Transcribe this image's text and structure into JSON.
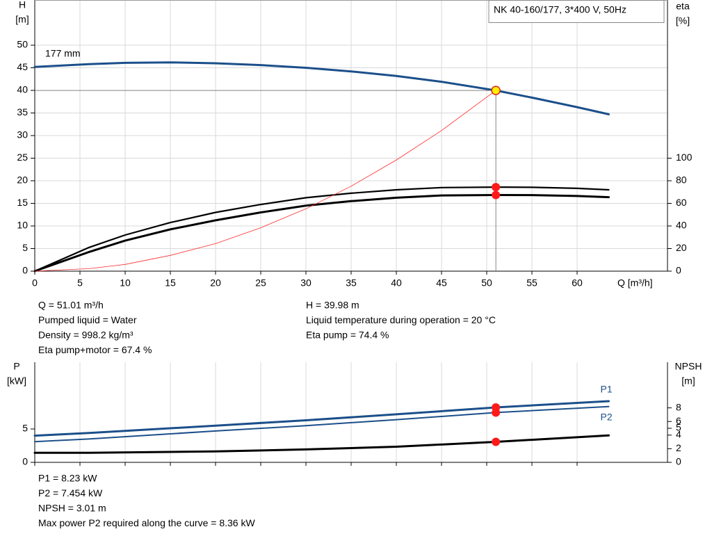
{
  "chart_data": [
    {
      "type": "line",
      "title": "NK 40-160/177, 3*400 V, 50Hz",
      "ylabel": "H",
      "yunit": "[m]",
      "y2label": "eta",
      "y2unit": "[%]",
      "xlabel": "Q [m³/h]",
      "annotation": "177 mm",
      "grid": true,
      "xlim": [
        0,
        70
      ],
      "xticks": [
        0,
        5,
        10,
        15,
        20,
        25,
        30,
        35,
        40,
        45,
        50,
        55,
        60
      ],
      "ylim": [
        0,
        60
      ],
      "yticks": [
        0,
        5,
        10,
        15,
        20,
        25,
        30,
        35,
        40,
        45,
        50
      ],
      "y2lim": [
        0,
        240
      ],
      "y2ticks": [
        0,
        20,
        40,
        60,
        80,
        100
      ],
      "x": [
        0,
        6,
        10,
        15,
        20,
        25,
        30,
        35,
        40,
        45,
        51.01,
        55,
        60,
        63.5
      ],
      "series": [
        {
          "color": "#1b4f8a",
          "line_width": 3,
          "values": [
            45.2,
            45.8,
            46.1,
            46.2,
            46.0,
            45.6,
            45.0,
            44.2,
            43.2,
            41.9,
            39.98,
            38.4,
            36.3,
            34.7
          ]
        },
        {
          "color": "#000000",
          "line_width": 2.2,
          "axis": "y2",
          "values": [
            0,
            21,
            32,
            43,
            52,
            59,
            65,
            69,
            72,
            74,
            74.4,
            74.2,
            73.3,
            72
          ]
        },
        {
          "color": "#000000",
          "line_width": 3,
          "axis": "y2",
          "values": [
            0,
            17,
            27,
            37,
            45,
            52,
            58,
            62,
            65,
            67,
            67.4,
            67.3,
            66.5,
            65.5
          ]
        },
        {
          "color": "#ff2a2a",
          "line_width": 0.8,
          "values": [
            0,
            0.55,
            1.5,
            3.5,
            6.1,
            9.6,
            13.8,
            18.8,
            24.6,
            31.1,
            39.98,
            null,
            null,
            null
          ]
        }
      ],
      "markers": [
        {
          "x": 51.01,
          "y": 39.98,
          "color": "#ffef00",
          "guide": true
        },
        {
          "x": 51.01,
          "y": 74.4,
          "color": "#ff1a1a",
          "axis": "y2"
        },
        {
          "x": 51.01,
          "y": 67.4,
          "color": "#ff1a1a",
          "axis": "y2"
        }
      ],
      "info": [
        [
          "Q = 51.01 m³/h",
          "Pumped liquid = Water",
          "Density = 998.2 kg/m³",
          "Eta pump+motor = 67.4 %"
        ],
        [
          "H = 39.98 m",
          "Liquid temperature during operation = 20 °C",
          "Eta pump = 74.4 %"
        ]
      ]
    },
    {
      "type": "line",
      "ylabel": "P",
      "yunit": "[kW]",
      "y2label": "NPSH",
      "y2unit": "[m]",
      "xlim": [
        0,
        70
      ],
      "ylim": [
        0,
        15
      ],
      "yticks": [
        0,
        5
      ],
      "y2lim": [
        0,
        14.7
      ],
      "y2ticks": [
        0,
        2,
        4,
        5,
        6,
        8
      ],
      "x": [
        0,
        6,
        20,
        30,
        40,
        51.01,
        63.5
      ],
      "series": [
        {
          "name": "P1",
          "color": "#1b4f8a",
          "line_width": 3,
          "values": [
            4.0,
            4.4,
            5.5,
            6.3,
            7.2,
            8.23,
            9.17
          ]
        },
        {
          "name": "P2",
          "color": "#1b4f8a",
          "line_width": 2,
          "values": [
            3.1,
            3.5,
            4.7,
            5.5,
            6.4,
            7.454,
            8.36
          ]
        },
        {
          "color": "#000000",
          "line_width": 3,
          "axis": "y2",
          "values": [
            1.4,
            1.4,
            1.6,
            1.9,
            2.3,
            3.01,
            3.95
          ]
        }
      ],
      "markers": [
        {
          "x": 51.01,
          "y": 8.23,
          "color": "#ff1a1a"
        },
        {
          "x": 51.01,
          "y": 7.454,
          "color": "#ff1a1a"
        },
        {
          "x": 51.01,
          "y": 3.01,
          "color": "#ff1a1a",
          "axis": "y2"
        }
      ],
      "info": [
        [
          "P1 = 8.23 kW",
          "P2 = 7.454 kW",
          "NPSH = 3.01 m",
          "Max power P2 required along the curve = 8.36 kW"
        ]
      ]
    }
  ]
}
